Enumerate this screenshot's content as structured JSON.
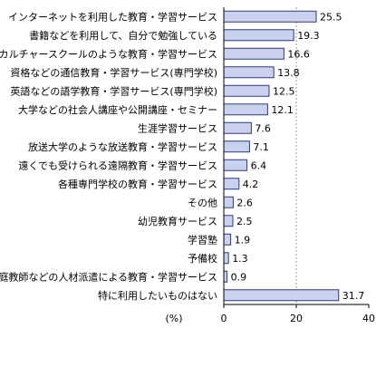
{
  "chart_data": {
    "type": "bar",
    "orientation": "horizontal",
    "categories": [
      "インターネットを利用した教育・学習サービス",
      "書籍などを利用して、自分で勉強している",
      "カルチャースクールのような教育・学習サービス",
      "資格などの通信教育・学習サービス(専門学校)",
      "英語などの語学教育・学習サービス(専門学校)",
      "大学などの社会人講座や公開講座・セミナー",
      "生涯学習サービス",
      "放送大学のような放送教育・学習サービス",
      "遠くでも受けられる遠隔教育・学習サービス",
      "各種専門学校の教育・学習サービス",
      "その他",
      "幼児教育サービス",
      "学習塾",
      "予備校",
      "家庭教師などの人材派遣による教育・学習サービス",
      "特に利用したいものはない"
    ],
    "values": [
      25.5,
      19.3,
      16.6,
      13.8,
      12.5,
      12.1,
      7.6,
      7.1,
      6.4,
      4.2,
      2.6,
      2.5,
      1.9,
      1.3,
      0.9,
      31.7
    ],
    "value_labels": [
      "25.5",
      "19.3",
      "16.6",
      "13.8",
      "12.5",
      "12.1",
      "7.6",
      "7.1",
      "6.4",
      "4.2",
      "2.6",
      "2.5",
      "1.9",
      "1.3",
      "0.9",
      "31.7"
    ],
    "xlim": [
      0,
      40
    ],
    "xticks": [
      "0",
      "20",
      "40"
    ],
    "xunit": "(%)",
    "grid": "vertical dashed at 20",
    "bar_color": "#c9d1ef",
    "bar_border_color": "#2b3a7a"
  }
}
